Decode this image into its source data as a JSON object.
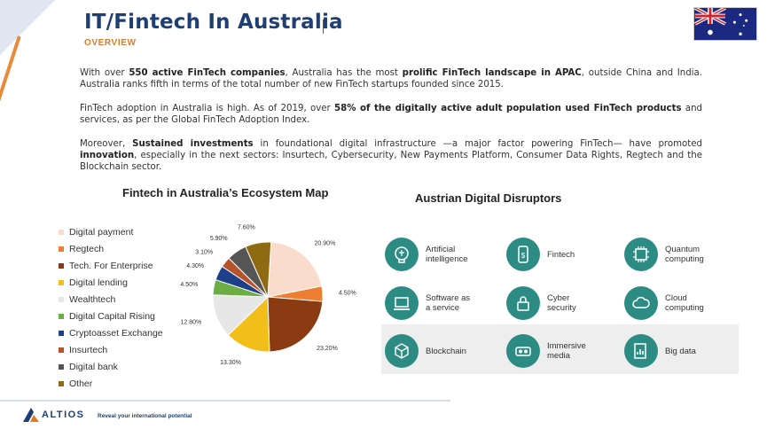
{
  "header": {
    "title": "IT/Fintech In Australia",
    "subtitle": "OVERVIEW"
  },
  "flag": {
    "icon": "australia-flag-icon"
  },
  "paragraphs": {
    "p1": {
      "t1": "With over ",
      "b1": "550 active FinTech companies",
      "t2": ", Australia has the most ",
      "b2": "prolific FinTech landscape in APAC",
      "t3": ", outside China and India. Australia ranks fifth in terms of the total number of new FinTech startups founded since 2015."
    },
    "p2": {
      "t1": "FinTech adoption in Australia is high. As of 2019, over ",
      "b1": "58% of the digitally active adult population used FinTech products",
      "t2": " and services, as per the Global  FinTech Adoption Index."
    },
    "p3": {
      "t1": "Moreover, ",
      "b1": "Sustained investments",
      "t2": " in foundational digital infrastructure —a major factor powering FinTech— have promoted ",
      "b2": "innovation",
      "t3": ", especially in the next sectors: Insurtech, Cybersecurity, New Payments Platform, Consumer Data Rights, Regtech and the Blockchain sector."
    }
  },
  "chart_data": {
    "type": "pie",
    "title": "Fintech in Australia’s Ecosystem Map",
    "legend_position": "left",
    "categories": [
      "Digital payment",
      "Regtech",
      "Tech. For Enterprise",
      "Digital lending",
      "Wealthtech",
      "Digital Capital Rising",
      "Cryptoasset Exchange",
      "Insurtech",
      "Digital bank",
      "Other"
    ],
    "values": [
      20.9,
      4.5,
      23.2,
      13.3,
      12.8,
      4.5,
      4.3,
      3.1,
      5.9,
      7.6
    ],
    "value_labels": [
      "20.90%",
      "4.50%",
      "23.20%",
      "13.30%",
      "12.80%",
      "4.50%",
      "4.30%",
      "3.10%",
      "5.90%",
      "7.60%"
    ],
    "colors": [
      "#f9dccb",
      "#ee7e31",
      "#8a3b12",
      "#f2be1a",
      "#e7e7e7",
      "#6cae45",
      "#1e3f8a",
      "#b5532a",
      "#555555",
      "#8e6b12"
    ]
  },
  "disruptors": {
    "title": "Austrian Digital Disruptors",
    "circle_color": "#2c8c84",
    "items": [
      {
        "label": "Artificial\nintelligence",
        "icon": "ai-brain-icon"
      },
      {
        "label": "Fintech",
        "icon": "fintech-phone-icon"
      },
      {
        "label": "Quantum\ncomputing",
        "icon": "quantum-chip-icon"
      },
      {
        "label": "Software as\na service",
        "icon": "saas-laptop-icon"
      },
      {
        "label": "Cyber\nsecurity",
        "icon": "cyber-lock-icon"
      },
      {
        "label": "Cloud\ncomputing",
        "icon": "cloud-icon"
      },
      {
        "label": "Blockchain",
        "icon": "blockchain-cube-icon"
      },
      {
        "label": "Immersive\nmedia",
        "icon": "immersive-media-icon"
      },
      {
        "label": "Big data",
        "icon": "big-data-icon"
      }
    ]
  },
  "footer": {
    "logo_text": "ALTIOS",
    "tagline": "Reveal your international potential"
  }
}
